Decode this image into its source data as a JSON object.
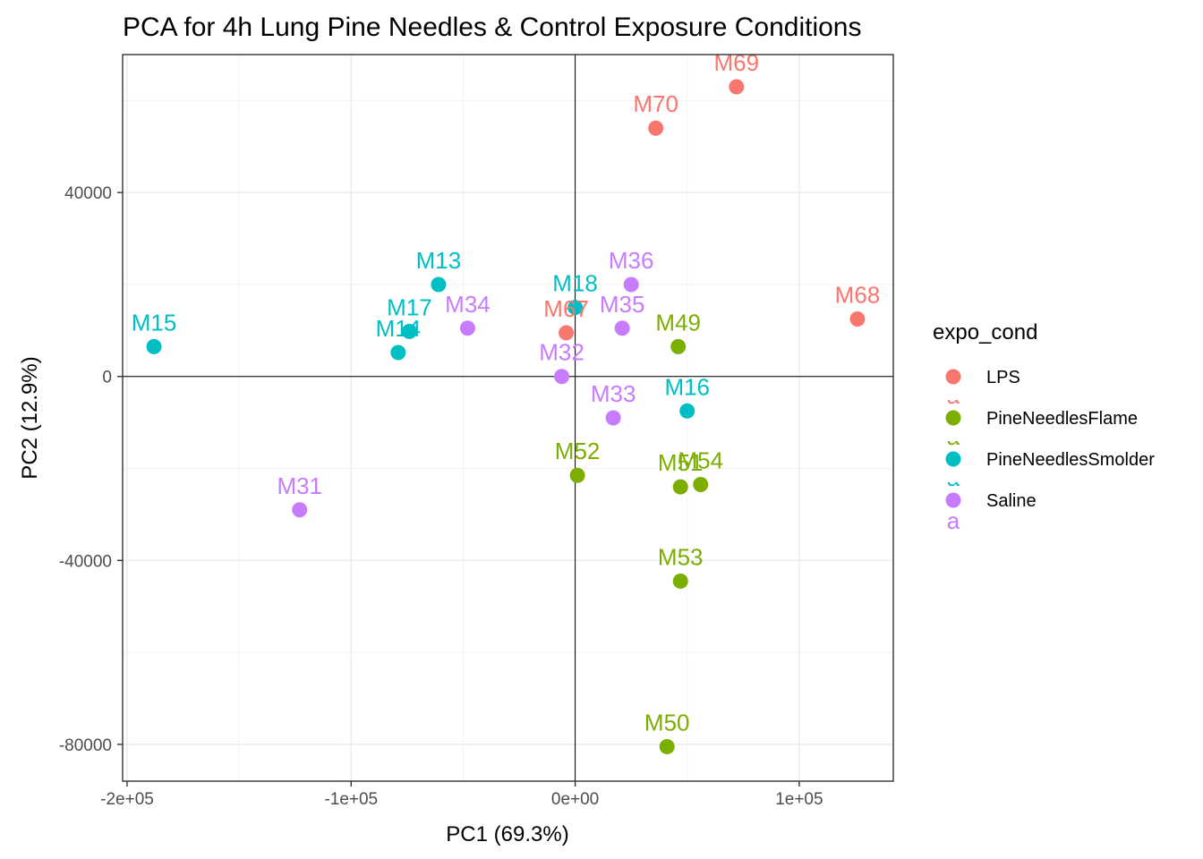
{
  "chart_data": {
    "type": "scatter",
    "title": "PCA for 4h Lung Pine Needles & Control Exposure Conditions",
    "xlabel": "PC1 (69.3%)",
    "ylabel": "PC2 (12.9%)",
    "xlim": [
      -202000,
      142000
    ],
    "ylim": [
      -88000,
      70000
    ],
    "x_ticks": [
      {
        "value": -200000,
        "label": "-2e+05"
      },
      {
        "value": -100000,
        "label": "-1e+05"
      },
      {
        "value": 0,
        "label": "0e+00"
      },
      {
        "value": 100000,
        "label": "1e+05"
      }
    ],
    "y_ticks": [
      {
        "value": 40000,
        "label": "40000"
      },
      {
        "value": 0,
        "label": "0"
      },
      {
        "value": -40000,
        "label": "-40000"
      },
      {
        "value": -80000,
        "label": "-80000"
      }
    ],
    "grid": true,
    "reference_lines": {
      "x": 0,
      "y": 0
    },
    "legend": {
      "title": "expo_cond",
      "placement": "right",
      "entries": [
        {
          "name": "LPS",
          "color": "#F8766D"
        },
        {
          "name": "PineNeedlesFlame",
          "color": "#7CAE00"
        },
        {
          "name": "PineNeedlesSmolder",
          "color": "#00BFC4"
        },
        {
          "name": "Saline",
          "color": "#C77CFF"
        }
      ],
      "key_glyph": "a"
    },
    "points": [
      {
        "label": "M69",
        "group": "LPS",
        "x": 72000,
        "y": 63000
      },
      {
        "label": "M70",
        "group": "LPS",
        "x": 36000,
        "y": 54000
      },
      {
        "label": "M68",
        "group": "LPS",
        "x": 126000,
        "y": 12500
      },
      {
        "label": "M67",
        "group": "LPS",
        "x": -4000,
        "y": 9500
      },
      {
        "label": "M49",
        "group": "PineNeedlesFlame",
        "x": 46000,
        "y": 6500
      },
      {
        "label": "M52",
        "group": "PineNeedlesFlame",
        "x": 1000,
        "y": -21500
      },
      {
        "label": "M51",
        "group": "PineNeedlesFlame",
        "x": 47000,
        "y": -24000
      },
      {
        "label": "M54",
        "group": "PineNeedlesFlame",
        "x": 56000,
        "y": -23500
      },
      {
        "label": "M53",
        "group": "PineNeedlesFlame",
        "x": 47000,
        "y": -44500
      },
      {
        "label": "M50",
        "group": "PineNeedlesFlame",
        "x": 41000,
        "y": -80500
      },
      {
        "label": "M13",
        "group": "PineNeedlesSmolder",
        "x": -61000,
        "y": 20000
      },
      {
        "label": "M18",
        "group": "PineNeedlesSmolder",
        "x": 0,
        "y": 15000
      },
      {
        "label": "M15",
        "group": "PineNeedlesSmolder",
        "x": -188000,
        "y": 6500
      },
      {
        "label": "M17",
        "group": "PineNeedlesSmolder",
        "x": -74000,
        "y": 9800
      },
      {
        "label": "M14",
        "group": "PineNeedlesSmolder",
        "x": -79000,
        "y": 5200
      },
      {
        "label": "M16",
        "group": "PineNeedlesSmolder",
        "x": 50000,
        "y": -7500
      },
      {
        "label": "M36",
        "group": "Saline",
        "x": 25000,
        "y": 20000
      },
      {
        "label": "M34",
        "group": "Saline",
        "x": -48000,
        "y": 10500
      },
      {
        "label": "M35",
        "group": "Saline",
        "x": 21000,
        "y": 10500
      },
      {
        "label": "M32",
        "group": "Saline",
        "x": -6000,
        "y": 0
      },
      {
        "label": "M33",
        "group": "Saline",
        "x": 17000,
        "y": -9000
      },
      {
        "label": "M31",
        "group": "Saline",
        "x": -123000,
        "y": -29000
      }
    ]
  }
}
